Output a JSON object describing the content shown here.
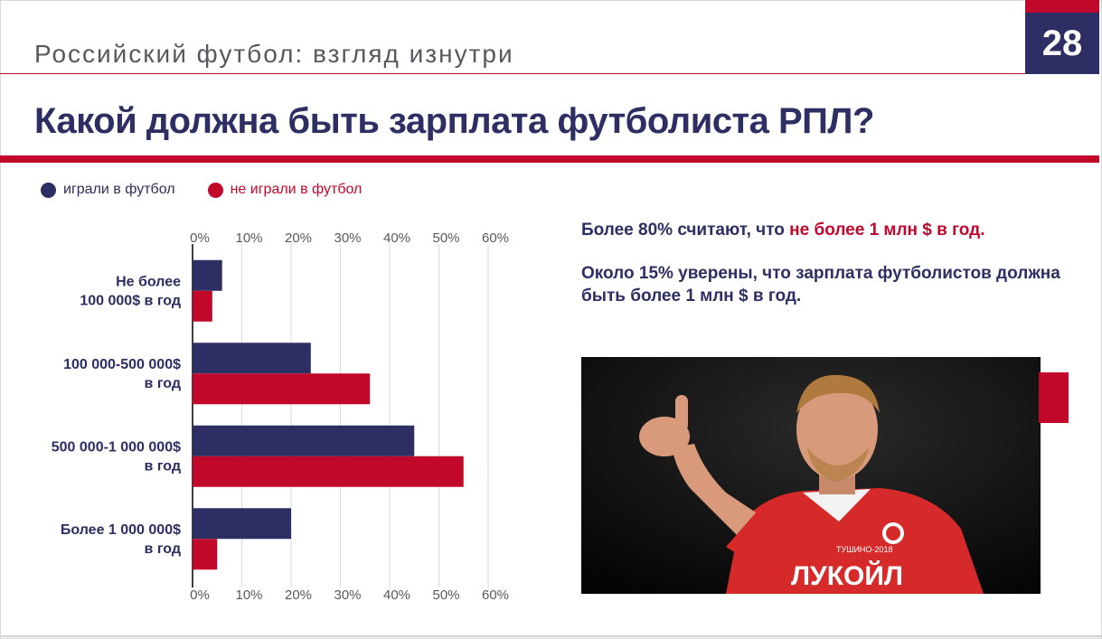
{
  "header": {
    "subtitle": "Российский футбол: взгляд изнутри",
    "page_number": "28"
  },
  "title": "Какой должна быть зарплата футболиста РПЛ?",
  "legend": {
    "played": "играли в футбол",
    "not_played": "не играли в футбол"
  },
  "statements": {
    "line1_prefix": "Более 80% считают, что ",
    "line1_highlight": "не более 1 млн $ в год.",
    "line2": "Около 15% уверены, что зарплата футболистов должна быть более 1 млн $ в год."
  },
  "photo": {
    "sponsor_text": "ЛУКОЙЛ",
    "sponsor_small": "ТУШИНО-2018"
  },
  "colors": {
    "navy": "#2d2e63",
    "red": "#c1082a",
    "grid": "#d9d9d9",
    "text_gray": "#55595e"
  },
  "chart_data": {
    "type": "bar",
    "orientation": "horizontal",
    "categories": [
      [
        "Не более",
        "100 000$ в год"
      ],
      [
        "100 000-500 000$",
        "в год"
      ],
      [
        "500 000-1 000 000$",
        "в год"
      ],
      [
        "Более 1 000 000$",
        "в год"
      ]
    ],
    "series": [
      {
        "name": "играли в футбол",
        "color": "#2d2e63",
        "values": [
          6,
          24,
          45,
          20
        ]
      },
      {
        "name": "не играли в футбол",
        "color": "#c1082a",
        "values": [
          4,
          36,
          55,
          5
        ]
      }
    ],
    "xlim": [
      0,
      60
    ],
    "xticks": [
      "0%",
      "10%",
      "20%",
      "30%",
      "40%",
      "50%",
      "60%"
    ],
    "grid": true,
    "legend_position": "top-left"
  }
}
